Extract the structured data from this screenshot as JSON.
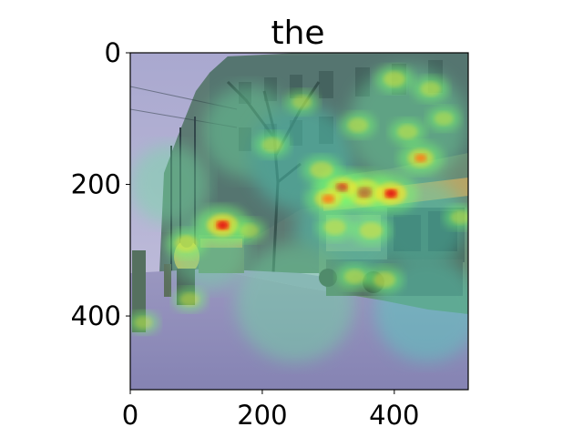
{
  "chart_data": {
    "type": "heatmap",
    "title": "the",
    "description": "Attention heatmap (jet colormap) overlaid on a vintage street photograph with a streetcar and pedestrians",
    "xlim": [
      0,
      512
    ],
    "ylim": [
      512,
      0
    ],
    "y_inverted": true,
    "x_ticks": [
      0,
      200,
      400
    ],
    "y_ticks": [
      0,
      200,
      400
    ],
    "grid": false,
    "colormap": "jet",
    "hotspots": [
      {
        "x": 355,
        "y": 212,
        "intensity": 1.0
      },
      {
        "x": 320,
        "y": 205,
        "intensity": 0.8
      },
      {
        "x": 395,
        "y": 214,
        "intensity": 0.85
      },
      {
        "x": 140,
        "y": 262,
        "intensity": 0.85
      },
      {
        "x": 300,
        "y": 222,
        "intensity": 0.7
      },
      {
        "x": 440,
        "y": 160,
        "intensity": 0.65
      },
      {
        "x": 290,
        "y": 178,
        "intensity": 0.55
      },
      {
        "x": 365,
        "y": 270,
        "intensity": 0.55
      },
      {
        "x": 310,
        "y": 265,
        "intensity": 0.5
      },
      {
        "x": 400,
        "y": 40,
        "intensity": 0.5
      },
      {
        "x": 85,
        "y": 290,
        "intensity": 0.55
      },
      {
        "x": 215,
        "y": 140,
        "intensity": 0.45
      },
      {
        "x": 260,
        "y": 75,
        "intensity": 0.4
      },
      {
        "x": 345,
        "y": 110,
        "intensity": 0.45
      },
      {
        "x": 455,
        "y": 55,
        "intensity": 0.45
      },
      {
        "x": 475,
        "y": 100,
        "intensity": 0.4
      },
      {
        "x": 420,
        "y": 120,
        "intensity": 0.45
      },
      {
        "x": 385,
        "y": 345,
        "intensity": 0.5
      },
      {
        "x": 340,
        "y": 340,
        "intensity": 0.45
      },
      {
        "x": 90,
        "y": 375,
        "intensity": 0.4
      },
      {
        "x": 20,
        "y": 410,
        "intensity": 0.35
      },
      {
        "x": 500,
        "y": 250,
        "intensity": 0.4
      },
      {
        "x": 180,
        "y": 270,
        "intensity": 0.4
      }
    ]
  },
  "colors": {
    "sky": "#b9b7d6",
    "building": "#5f7f78",
    "road": "#8f8fb8",
    "tram": "#6f8f7a",
    "axis": "#000000"
  }
}
